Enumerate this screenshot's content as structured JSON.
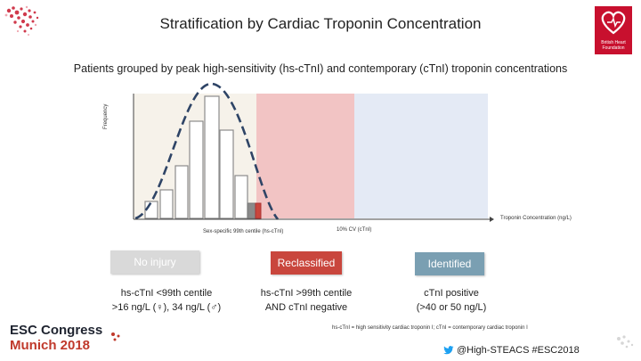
{
  "title": "Stratification by Cardiac Troponin Concentration",
  "subtitle": "Patients grouped by peak high-sensitivity (hs-cTnI) and contemporary (cTnI) troponin concentrations",
  "chart": {
    "y_axis_label": "Frequency",
    "x_axis_label": "Troponin Concentration (ng/L)",
    "threshold_99th_label": "Sex-specific 99th centile (hs-cTnI)",
    "threshold_cv_label": "10% CV (cTnI)",
    "zone_colors": {
      "no_injury": "#f6f2ea",
      "reclassified": "#f2c4c4",
      "identified": "#e4eaf5"
    },
    "curve_color": "#2e4466"
  },
  "categories": {
    "no_injury": {
      "label": "No injury",
      "line1": "hs-cTnI <99th centile",
      "line2": ">16 ng/L (♀), 34 ng/L (♂)"
    },
    "reclassified": {
      "label": "Reclassified",
      "line1": "hs-cTnI >99th centile",
      "line2": "AND cTnI negative"
    },
    "identified": {
      "label": "Identified",
      "line1": "cTnI positive",
      "line2": "(>40 or 50 ng/L)"
    }
  },
  "footnote": "hs-cTnI = high sensitivity cardiac troponin I; cTnI = contemporary cardiac troponin I",
  "congress": {
    "line1": "ESC Congress",
    "line2": "Munich 2018"
  },
  "twitter_handle": "@High-STEACS #ESC2018",
  "logo": {
    "name": "British Heart Foundation",
    "icon": "heart-logo"
  }
}
